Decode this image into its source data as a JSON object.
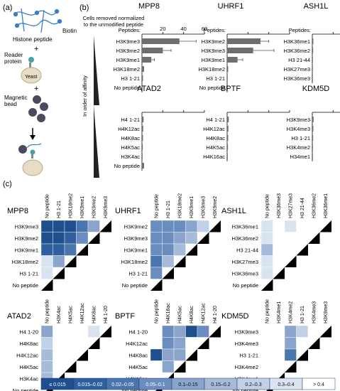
{
  "panel_labels": {
    "a": "(a)",
    "b": "(b)",
    "c": "(c)"
  },
  "schematic": {
    "histone_peptide": "Histone peptide",
    "biotin": "Biotin",
    "reader_protein": "Reader protein",
    "yeast": "Yeast",
    "magnetic_bead": "Magnetic bead",
    "plus1": "+",
    "plus2": "+"
  },
  "panel_b": {
    "axis_title_line1": "Cells removed normalized",
    "axis_title_line2": "to the unmodified peptide",
    "peptides_label": "Peptides:",
    "affinity_label": "In order of affinity",
    "ticks": [
      20,
      40,
      60
    ],
    "xmax": 60
  },
  "chart_data": [
    {
      "type": "bar",
      "title": "MPP8",
      "categories": [
        "H3K9me3",
        "H3K9me2",
        "H3K9me1",
        "H3K18me2",
        "H3 1-21",
        "No peptide"
      ],
      "values": [
        36,
        20,
        9,
        2,
        1,
        0.5
      ],
      "errors": [
        16,
        8,
        3,
        0,
        0,
        0
      ],
      "xlim": [
        0,
        60
      ]
    },
    {
      "type": "bar",
      "title": "UHRF1",
      "categories": [
        "H3K9me2",
        "H3K9me3",
        "H3K9me1",
        "H3K18me2",
        "H3 1-21",
        "No peptide"
      ],
      "values": [
        32,
        25,
        10,
        1,
        0.5,
        0.3
      ],
      "errors": [
        8,
        20,
        5,
        0,
        0,
        0
      ],
      "xlim": [
        0,
        60
      ]
    },
    {
      "type": "bar",
      "title": "ASH1L",
      "categories": [
        "H3K36me1",
        "H3K36me2",
        "H3 21-44",
        "H3K27me3",
        "H3K36me3"
      ],
      "values": [
        1,
        0.8,
        0.6,
        0.5,
        0.4
      ],
      "errors": [
        0,
        0,
        0,
        0,
        0
      ],
      "xlim": [
        0,
        60
      ]
    },
    {
      "type": "bar",
      "title": "ATAD2",
      "categories": [
        "H4 1-21",
        "H4K12ac",
        "H4K8ac",
        "H4K5ac",
        "H3K4ac",
        "No peptide"
      ],
      "values": [
        1.5,
        1.2,
        1,
        0.8,
        0.6,
        2
      ],
      "errors": [
        0,
        0,
        0,
        0,
        0,
        0
      ],
      "xlim": [
        0,
        60
      ]
    },
    {
      "type": "bar",
      "title": "BPTF",
      "categories": [
        "H4 1-21",
        "H4K12ac",
        "H4K8ac",
        "H4K5ac",
        "H4K16ac"
      ],
      "values": [
        1.5,
        1.2,
        1,
        0.8,
        0.6
      ],
      "errors": [
        0,
        0,
        0,
        0,
        0
      ],
      "xlim": [
        0,
        60
      ]
    },
    {
      "type": "bar",
      "title": "KDM5D",
      "categories": [
        "H3K9me3",
        "H3K4me3",
        "H3 1-21",
        "H3K4me2",
        "H34me1"
      ],
      "values": [
        1.2,
        1,
        0.8,
        0.6,
        0.5
      ],
      "errors": [
        0,
        0,
        0,
        0,
        0
      ],
      "xlim": [
        0,
        60
      ]
    },
    {
      "type": "heatmap",
      "title": "MPP8",
      "labels": [
        "No peptide",
        "H3 1-21",
        "H3K18me2",
        "H3K9me1",
        "H3K9me2",
        "H3K9me3"
      ],
      "rows": [
        "H3K9me3",
        "H3K9me2",
        "H3K9me1",
        "H3K18me2",
        "H3 1-21",
        "No peptide"
      ],
      "cells": [
        [
          1,
          1,
          1,
          3,
          5
        ],
        [
          1,
          1,
          2,
          4,
          null
        ],
        [
          2,
          2,
          3,
          null,
          null
        ],
        [
          8,
          5,
          null,
          null,
          null
        ],
        [
          8,
          null,
          null,
          null,
          null
        ]
      ]
    },
    {
      "type": "heatmap",
      "title": "UHRF1",
      "labels": [
        "No peptide",
        "H3 1-21",
        "H3K18me2",
        "H3K9me1",
        "H3K9me3",
        "H3K9me2"
      ],
      "rows": [
        "H3K9me2",
        "H3K9me3",
        "H3K9me1",
        "H3K18me2",
        "H3 1-21",
        "No peptide"
      ],
      "cells": [
        [
          4,
          4,
          4,
          5,
          7
        ],
        [
          4,
          4,
          5,
          6,
          null
        ],
        [
          4,
          4,
          6,
          null,
          null
        ],
        [
          3,
          6,
          null,
          null,
          null
        ],
        [
          4,
          null,
          null,
          null,
          null
        ]
      ]
    },
    {
      "type": "heatmap",
      "title": "ASH1L",
      "labels": [
        "No peptide",
        "H3K36me3",
        "H3K27me3",
        "H3 21-44",
        "H3K36me2",
        "H3K36me1"
      ],
      "rows": [
        "H3K36me1",
        "H3K36me2",
        "H3 21-44",
        "H3K27me3",
        "H3K36me3",
        "No peptide"
      ],
      "cells": [
        [
          8,
          9,
          8,
          9,
          9
        ],
        [
          8,
          9,
          9,
          9,
          null
        ],
        [
          6,
          9,
          9,
          null,
          null
        ],
        [
          8,
          9,
          null,
          null,
          null
        ],
        [
          8,
          null,
          null,
          null,
          null
        ]
      ]
    },
    {
      "type": "heatmap",
      "title": "ATAD2",
      "labels": [
        "No peptide",
        "H3K4ac",
        "H4K5ac",
        "H4K12ac",
        "H4K8ac",
        "H4 1-20"
      ],
      "rows": [
        "H4 1-20",
        "H4K8ac",
        "H4K12ac",
        "H4K5ac",
        "H3K4ac",
        "No peptide"
      ],
      "cells": [
        [
          5,
          9,
          9,
          9,
          8
        ],
        [
          7,
          9,
          9,
          9,
          null
        ],
        [
          6,
          9,
          9,
          null,
          null
        ],
        [
          6,
          9,
          null,
          null,
          null
        ],
        [
          6,
          null,
          null,
          null,
          null
        ]
      ]
    },
    {
      "type": "heatmap",
      "title": "BPTF",
      "labels": [
        "No peptide",
        "H4K16ac",
        "H4K5ac",
        "H4K8ac",
        "H4K12ac",
        "H4 1-20"
      ],
      "rows": [
        "H4 1-20",
        "H4K12ac",
        "H4K8ac",
        "H4K5ac",
        "H4K16ac",
        "No peptide"
      ],
      "cells": [
        [
          9,
          4,
          5,
          1,
          4
        ],
        [
          9,
          4,
          5,
          9,
          null
        ],
        [
          1,
          5,
          5,
          null,
          null
        ],
        [
          9,
          5,
          null,
          null,
          null
        ],
        [
          9,
          null,
          null,
          null,
          null
        ]
      ]
    },
    {
      "type": "heatmap",
      "title": "KDM5D",
      "labels": [
        "No peptide",
        "H3K4me1",
        "H3K4me2",
        "H3 1-21",
        "H3K4me3",
        "H3K9me3"
      ],
      "rows": [
        "H3K9me3",
        "H3K4me3",
        "H3 1-21",
        "H3K4me2",
        "H3K4me1",
        "No peptide"
      ],
      "cells": [
        [
          9,
          9,
          5,
          7,
          9
        ],
        [
          9,
          9,
          5,
          9,
          null
        ],
        [
          9,
          9,
          3,
          null,
          null
        ],
        [
          9,
          9,
          null,
          null,
          null
        ],
        [
          9,
          null,
          null,
          null,
          null
        ]
      ]
    }
  ],
  "legend": {
    "labels": [
      "≤ 0.015",
      "0.015–0.02",
      "0.02–0.05",
      "0.05–0.1",
      "0.1–0.15",
      "0.15–0.2",
      "0.2–0.3",
      "0.3–0.4",
      "> 0.4"
    ],
    "colors": [
      "#1f4f8c",
      "#2f5f9c",
      "#4a75ad",
      "#6a8cbe",
      "#8aa4cc",
      "#a6bbd9",
      "#c1d0e6",
      "#dae3f0",
      "#ffffff"
    ]
  }
}
